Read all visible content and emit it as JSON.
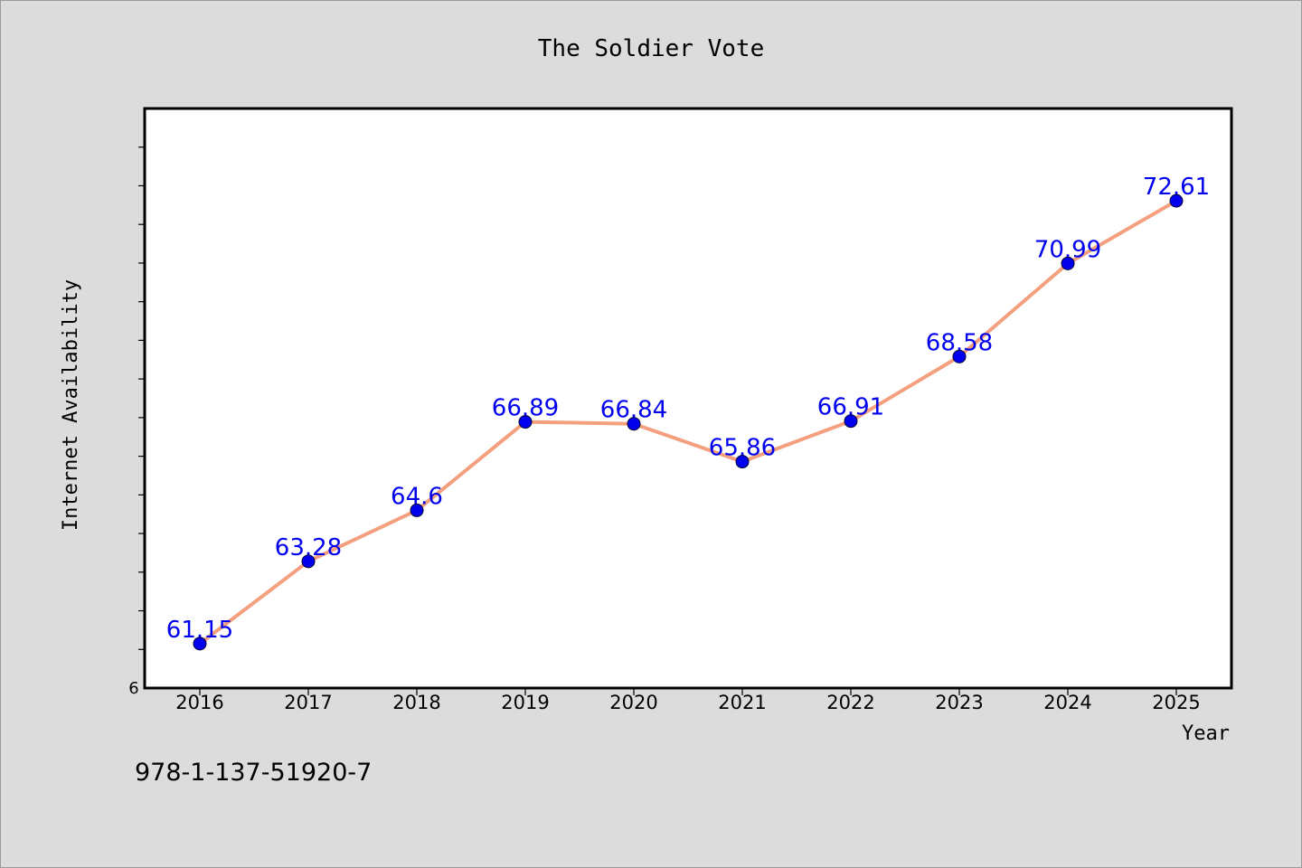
{
  "chart_data": {
    "type": "line",
    "title": "The Soldier Vote",
    "xlabel": "Year",
    "ylabel": "Internet Availability",
    "x": [
      "2016",
      "2017",
      "2018",
      "2019",
      "2020",
      "2021",
      "2022",
      "2023",
      "2024",
      "2025"
    ],
    "series": [
      {
        "values": [
          61.15,
          63.28,
          64.6,
          66.89,
          66.84,
          65.86,
          66.91,
          68.58,
          70.99,
          72.61
        ]
      }
    ],
    "ylim": [
      60,
      75
    ],
    "y_tick_label": "6",
    "grid": false,
    "line_color": "#f4a07f",
    "marker_color": "#0000ee",
    "label_color": "#0000ee"
  },
  "footer_text": "978-1-137-51920-7"
}
